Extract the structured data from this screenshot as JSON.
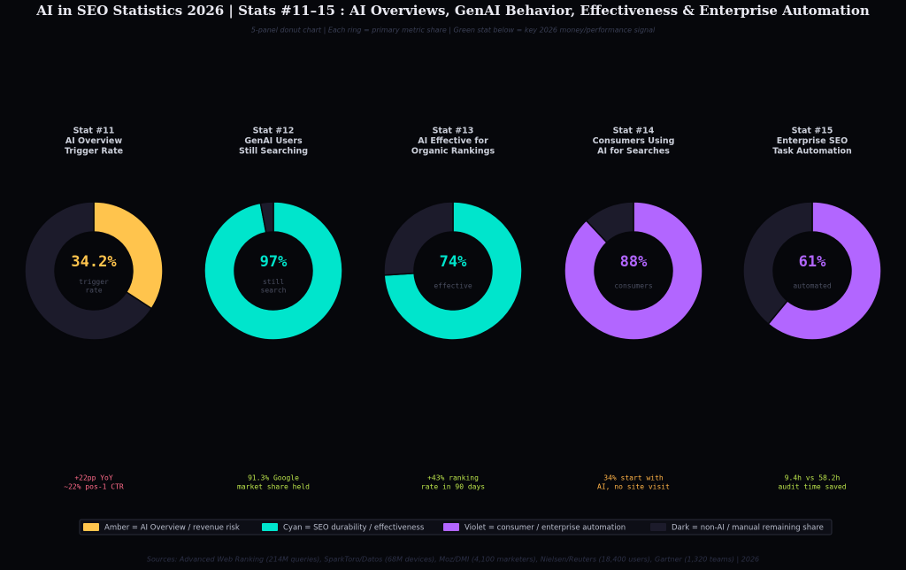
{
  "title": "AI in SEO Statistics 2026  |  Stats #11–15 : AI Overviews, GenAI Behavior, Effectiveness & Enterprise Automation",
  "subtitle": "5-panel donut chart  |  Each ring = primary metric share  |  Green stat below = key 2026 money/performance signal",
  "legend": [
    {
      "label": "Amber = AI Overview / revenue risk",
      "color": "#ffc44d"
    },
    {
      "label": "Cyan = SEO durability / effectiveness",
      "color": "#00e5cc"
    },
    {
      "label": "Violet = consumer / enterprise automation",
      "color": "#b266ff"
    },
    {
      "label": "Dark = non-AI / manual remaining share",
      "color": "#1c1b2b"
    }
  ],
  "source": "Sources: Advanced Web Ranking (214M queries), SparkToro/Datos (68M devices), Moz/DMI (4,100 marketers), Nielsen/Reuters (18,400 users), Gartner (1,320 teams)  |  2026",
  "chart_data": [
    {
      "type": "donut",
      "title": [
        "Stat #11",
        "AI Overview",
        "Trigger Rate"
      ],
      "values": [
        34.2,
        65.8
      ],
      "value_labels": [
        "34.2%",
        null
      ],
      "colors": [
        "#ffc44d",
        "#1c1b2b"
      ],
      "caption": [
        "trigger",
        "rate"
      ],
      "note": [
        "+22pp YoY",
        "~22% pos-1 CTR"
      ],
      "note_color": "#ff6b8a"
    },
    {
      "type": "donut",
      "title": [
        "Stat #12",
        "GenAI Users",
        "Still Searching"
      ],
      "values": [
        97,
        3
      ],
      "value_labels": [
        "97%",
        null
      ],
      "colors": [
        "#00e5cc",
        "#1c1b2b"
      ],
      "caption": [
        "still",
        "search"
      ],
      "note": [
        "91.3% Google",
        "market share held"
      ],
      "note_color": "#b8e04a"
    },
    {
      "type": "donut",
      "title": [
        "Stat #13",
        "AI Effective for",
        "Organic Rankings"
      ],
      "values": [
        74,
        26
      ],
      "value_labels": [
        "74%",
        null
      ],
      "colors": [
        "#00e5cc",
        "#1c1b2b"
      ],
      "caption": [
        "effective"
      ],
      "note": [
        "+43% ranking",
        "rate in 90 days"
      ],
      "note_color": "#b8e04a"
    },
    {
      "type": "donut",
      "title": [
        "Stat #14",
        "Consumers Using",
        "AI for Searches"
      ],
      "values": [
        88,
        12
      ],
      "value_labels": [
        "88%",
        null
      ],
      "colors": [
        "#b266ff",
        "#1c1b2b"
      ],
      "caption": [
        "consumers"
      ],
      "note": [
        "34% start with",
        "AI, no site visit"
      ],
      "note_color": "#ffb347"
    },
    {
      "type": "donut",
      "title": [
        "Stat #15",
        "Enterprise SEO",
        "Task Automation"
      ],
      "values": [
        61,
        39
      ],
      "value_labels": [
        "61%",
        null
      ],
      "colors": [
        "#b266ff",
        "#1c1b2b"
      ],
      "caption": [
        "automated"
      ],
      "note": [
        "9.4h vs 58.2h",
        "audit time saved"
      ],
      "note_color": "#b8e04a"
    }
  ]
}
